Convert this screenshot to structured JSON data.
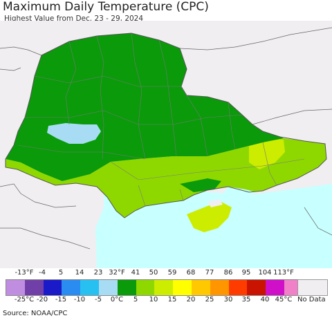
{
  "title": "Maximum Daily Temperature (CPC)",
  "subtitle": "Highest Value from Dec. 23 - 29, 2024",
  "source": "Source: NOAA/CPC",
  "legend": {
    "fahrenheit_ticks": [
      "-13°F",
      "-4",
      "5",
      "14",
      "23",
      "32°F",
      "41",
      "50",
      "59",
      "68",
      "77",
      "86",
      "95",
      "104",
      "113°F"
    ],
    "celsius_ticks": [
      "-25°C",
      "-20",
      "-15",
      "-10",
      "-5",
      "0°C",
      "5",
      "10",
      "15",
      "20",
      "25",
      "30",
      "35",
      "40",
      "45°C"
    ],
    "colors": [
      "#c08ee0",
      "#7040a8",
      "#1a1ac8",
      "#2a8cf0",
      "#28c0f0",
      "#a8dcf4",
      "#0a9a0a",
      "#8ed800",
      "#ccec00",
      "#ffff00",
      "#ffc800",
      "#ff9600",
      "#ff3c00",
      "#c81400",
      "#d010c8",
      "#f080c8"
    ],
    "no_data_label": "No Data",
    "no_data_color": "#f0eef0"
  },
  "map_colors": {
    "land_outside": "#f0eef0",
    "green": "#0a9a0a",
    "light_green": "#8ed800",
    "yellow_green": "#ccec00",
    "light_blue": "#a8dcf4",
    "sea": "#c8ffff"
  }
}
